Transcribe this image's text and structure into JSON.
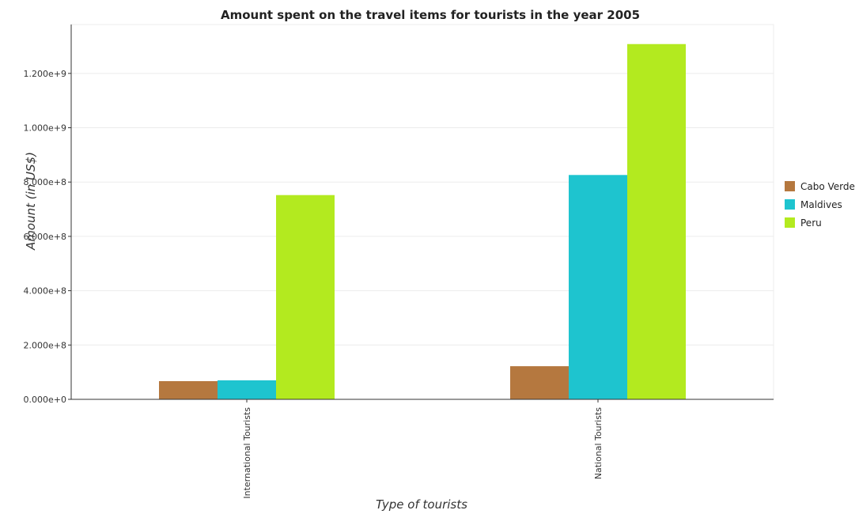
{
  "chart_data": {
    "type": "bar",
    "title": "Amount spent on the travel items for tourists in the year 2005",
    "xlabel": "Type of tourists",
    "ylabel": "Amount (in US$)",
    "categories": [
      "International Tourists",
      "National Tourists"
    ],
    "series": [
      {
        "name": "Cabo Verde",
        "color": "#b5783f",
        "values": [
          67000000,
          122000000
        ]
      },
      {
        "name": "Maldives",
        "color": "#1ec4cf",
        "values": [
          70000000,
          826000000
        ]
      },
      {
        "name": "Peru",
        "color": "#b3ea1f",
        "values": [
          752000000,
          1308000000
        ]
      }
    ],
    "ylim": [
      0,
      1380000000
    ],
    "yticks": [
      0,
      200000000,
      400000000,
      600000000,
      800000000,
      1000000000,
      1200000000
    ],
    "ytick_labels": [
      "0.000e+0",
      "2.000e+8",
      "4.000e+8",
      "6.000e+8",
      "8.000e+8",
      "1.000e+9",
      "1.200e+9"
    ],
    "grid": true,
    "legend_position": "right"
  }
}
